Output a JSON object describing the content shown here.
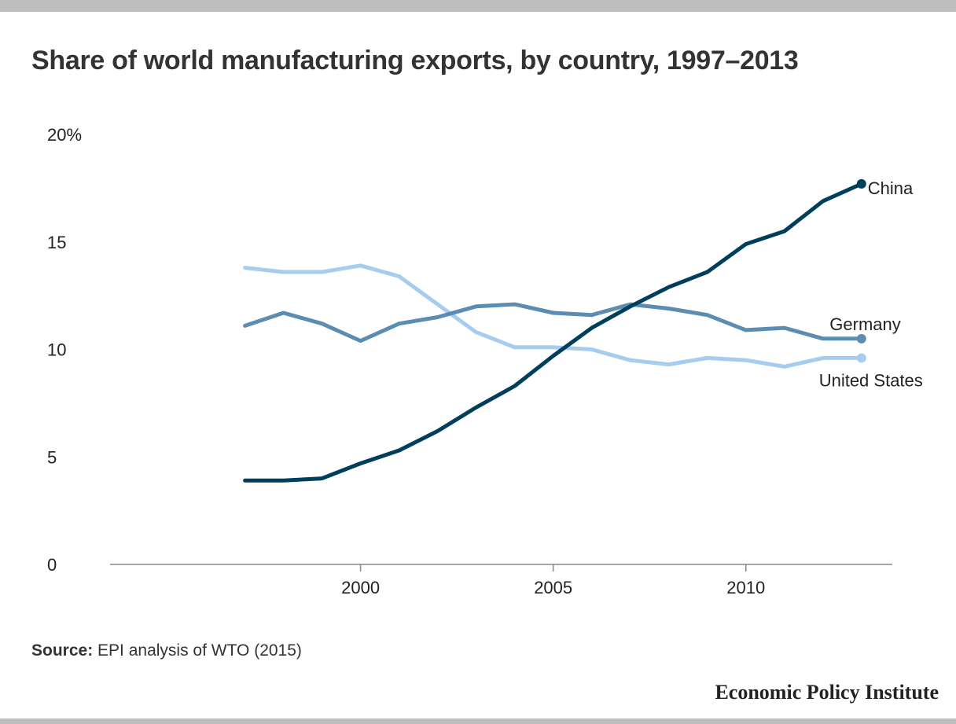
{
  "title": "Share of world manufacturing exports, by country, 1997–2013",
  "source_label": "Source:",
  "source_text": "EPI analysis of WTO (2015)",
  "brand": "Economic Policy Institute",
  "chart_data": {
    "type": "line",
    "x": [
      1997,
      1998,
      1999,
      2000,
      2001,
      2002,
      2003,
      2004,
      2005,
      2006,
      2007,
      2008,
      2009,
      2010,
      2011,
      2012,
      2013
    ],
    "xlim": [
      1993.5,
      2013.8
    ],
    "ylim": [
      0,
      20
    ],
    "xticks": [
      2000,
      2005,
      2010
    ],
    "xtick_labels": [
      "2000",
      "2005",
      "2010"
    ],
    "yticks": [
      0,
      5,
      10,
      15,
      20
    ],
    "ytick_labels": [
      "0",
      "5",
      "10",
      "15",
      "20%"
    ],
    "grid": false,
    "series": [
      {
        "name": "China",
        "color": "#003f5c",
        "values": [
          3.9,
          3.9,
          4.0,
          4.7,
          5.3,
          6.2,
          7.3,
          8.3,
          9.7,
          11.0,
          12.0,
          12.9,
          13.6,
          14.9,
          15.5,
          16.9,
          17.7
        ]
      },
      {
        "name": "Germany",
        "color": "#5b8db3",
        "values": [
          11.1,
          11.7,
          11.2,
          10.4,
          11.2,
          11.5,
          12.0,
          12.1,
          11.7,
          11.6,
          12.1,
          11.9,
          11.6,
          10.9,
          11.0,
          10.5,
          10.5
        ]
      },
      {
        "name": "United States",
        "color": "#a6cdef",
        "values": [
          13.8,
          13.6,
          13.6,
          13.9,
          13.4,
          12.1,
          10.8,
          10.1,
          10.1,
          10.0,
          9.5,
          9.3,
          9.6,
          9.5,
          9.2,
          9.6,
          9.6
        ]
      }
    ]
  }
}
